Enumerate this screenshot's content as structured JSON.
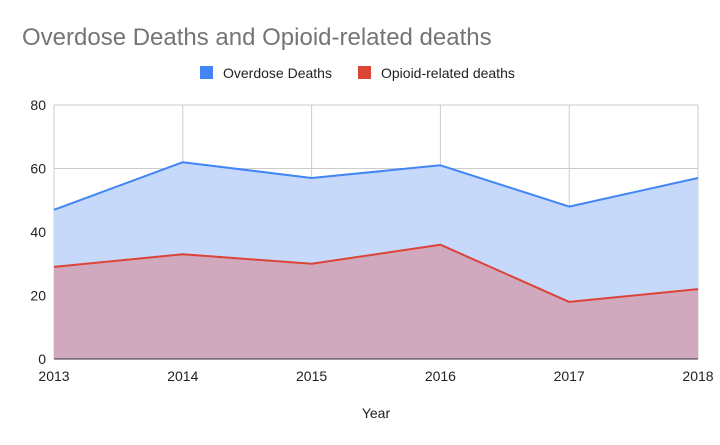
{
  "chart_data": {
    "type": "area",
    "title": "Overdose Deaths and Opioid-related deaths",
    "xlabel": "Year",
    "ylabel": "",
    "categories": [
      "2013",
      "2014",
      "2015",
      "2016",
      "2017",
      "2018"
    ],
    "ylim": [
      0,
      80
    ],
    "yticks": [
      0,
      20,
      40,
      60,
      80
    ],
    "grid": true,
    "legend_position": "top",
    "series": [
      {
        "name": "Overdose Deaths",
        "values": [
          47,
          62,
          57,
          61,
          48,
          57
        ],
        "color": "#4285f4",
        "fill": "#c6d9fb"
      },
      {
        "name": "Opioid-related deaths",
        "values": [
          29,
          33,
          30,
          36,
          18,
          22
        ],
        "color": "#db4437",
        "fill": "#d0a9bf"
      }
    ]
  }
}
